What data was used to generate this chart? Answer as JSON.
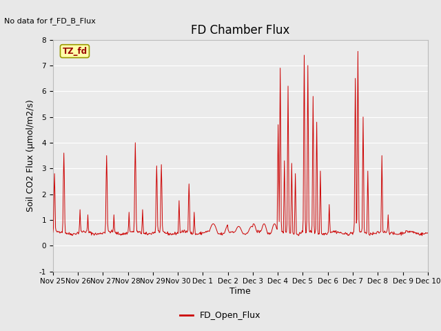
{
  "title": "FD Chamber Flux",
  "no_data_label": "No data for f_FD_B_Flux",
  "xlabel": "Time",
  "ylabel": "Soil CO2 Flux (μmol/m2/s)",
  "ylim": [
    -1.0,
    8.0
  ],
  "yticks": [
    -1.0,
    0.0,
    1.0,
    2.0,
    3.0,
    4.0,
    5.0,
    6.0,
    7.0,
    8.0
  ],
  "xtick_labels": [
    "Nov 25",
    "Nov 26",
    "Nov 27",
    "Nov 28",
    "Nov 29",
    "Nov 30",
    "Dec 1",
    "Dec 2",
    "Dec 3",
    "Dec 4",
    "Dec 5",
    "Dec 6",
    "Dec 7",
    "Dec 8",
    "Dec 9",
    "Dec 10"
  ],
  "line_color": "#cc0000",
  "line_label": "FD_Open_Flux",
  "legend_box_color": "#ffffaa",
  "legend_box_edge": "#999900",
  "tz_label": "TZ_fd",
  "fig_bg_color": "#e8e8e8",
  "plot_bg_color": "#ebebeb",
  "grid_color": "#ffffff",
  "title_fontsize": 12,
  "axis_label_fontsize": 9,
  "tick_fontsize": 7.5,
  "n_days": 15,
  "n_points": 720
}
